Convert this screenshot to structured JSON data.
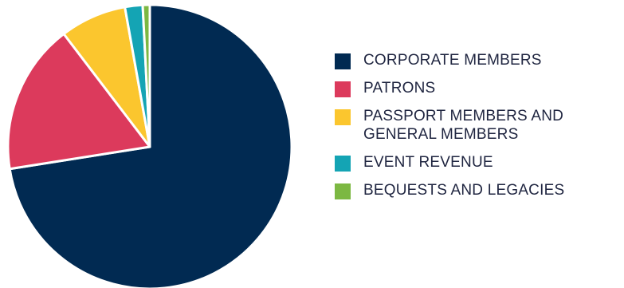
{
  "chart_data": {
    "type": "pie",
    "slices": [
      {
        "label": "CORPORATE MEMBERS",
        "value": 72.0,
        "color": "#012a52"
      },
      {
        "label": "PATRONS",
        "value": 17.0,
        "color": "#dc3a5c"
      },
      {
        "label": "PASSPORT MEMBERS AND GENERAL MEMBERS",
        "value": 7.5,
        "color": "#fbc62e"
      },
      {
        "label": "EVENT REVENUE",
        "value": 2.0,
        "color": "#14a4b4"
      },
      {
        "label": "BEQUESTS AND LEGACIES",
        "value": 0.8,
        "color": "#7cb842"
      }
    ],
    "legend_position": "right"
  }
}
